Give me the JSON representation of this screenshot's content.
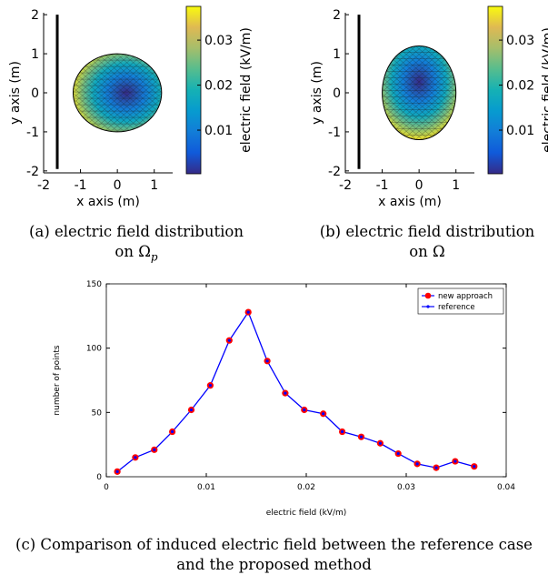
{
  "panels": [
    {
      "id": "a",
      "xlabel": "x axis (m)",
      "ylabel": "y axis (m)",
      "xticks": [
        "-2",
        "-1",
        "0",
        "1"
      ],
      "yticks": [
        "2",
        "1",
        "0",
        "-1",
        "-2"
      ],
      "xlim": [
        -2,
        1.5
      ],
      "ylim": [
        -2.05,
        2.05
      ],
      "ellipse": {
        "cx": 0,
        "cy": 0,
        "rx": 1.2,
        "ry": 1.0,
        "hot_side": "left"
      },
      "colorbar_label": "electric field (kV/m)",
      "colorbar_ticks": [
        "0.03",
        "0.02",
        "0.01"
      ]
    },
    {
      "id": "b",
      "xlabel": "x axis (m)",
      "ylabel": "y axis (m)",
      "xticks": [
        "-2",
        "-1",
        "0",
        "1"
      ],
      "yticks": [
        "2",
        "1",
        "0",
        "-1",
        "-2"
      ],
      "xlim": [
        -2,
        1.5
      ],
      "ylim": [
        -2.05,
        2.05
      ],
      "ellipse": {
        "cx": 0,
        "cy": 0,
        "rx": 1.0,
        "ry": 1.2,
        "hot_side": "bottom"
      },
      "colorbar_label": "electric field (kV/m)",
      "colorbar_ticks": [
        "0.03",
        "0.02",
        "0.01"
      ]
    }
  ],
  "captions": {
    "a_line1": "(a) electric field distribution",
    "a_line2": "on Ω",
    "a_sub": "p",
    "b_line1": "(b) electric field distribution",
    "b_line2": "on Ω",
    "c": "(c) Comparison of induced electric field between the reference case and the proposed method"
  },
  "chart_data": {
    "type": "line",
    "xlabel": "electric field (kV/m)",
    "ylabel": "number of points",
    "xlim": [
      0,
      0.04
    ],
    "ylim": [
      0,
      150
    ],
    "xticks": [
      "0",
      "0.01",
      "0.02",
      "0.03",
      "0.04"
    ],
    "yticks": [
      "0",
      "50",
      "100",
      "150"
    ],
    "legend_position": "top-right",
    "x": [
      0.0011,
      0.0029,
      0.0048,
      0.0066,
      0.0085,
      0.0104,
      0.0123,
      0.0142,
      0.0161,
      0.0179,
      0.0198,
      0.0217,
      0.0236,
      0.0255,
      0.0274,
      0.0292,
      0.0311,
      0.033,
      0.0349,
      0.0368
    ],
    "series": [
      {
        "name": "new approach",
        "color": "#ff0000",
        "marker": "circle",
        "values": [
          4,
          15,
          21,
          35,
          52,
          71,
          106,
          128,
          90,
          65,
          52,
          49,
          35,
          31,
          26,
          18,
          10,
          7,
          12,
          8
        ]
      },
      {
        "name": "reference",
        "color": "#0000ff",
        "marker": "dot",
        "values": [
          4,
          15,
          21,
          35,
          52,
          71,
          106,
          128,
          90,
          65,
          52,
          49,
          35,
          31,
          26,
          18,
          10,
          7,
          12,
          8
        ]
      }
    ]
  }
}
